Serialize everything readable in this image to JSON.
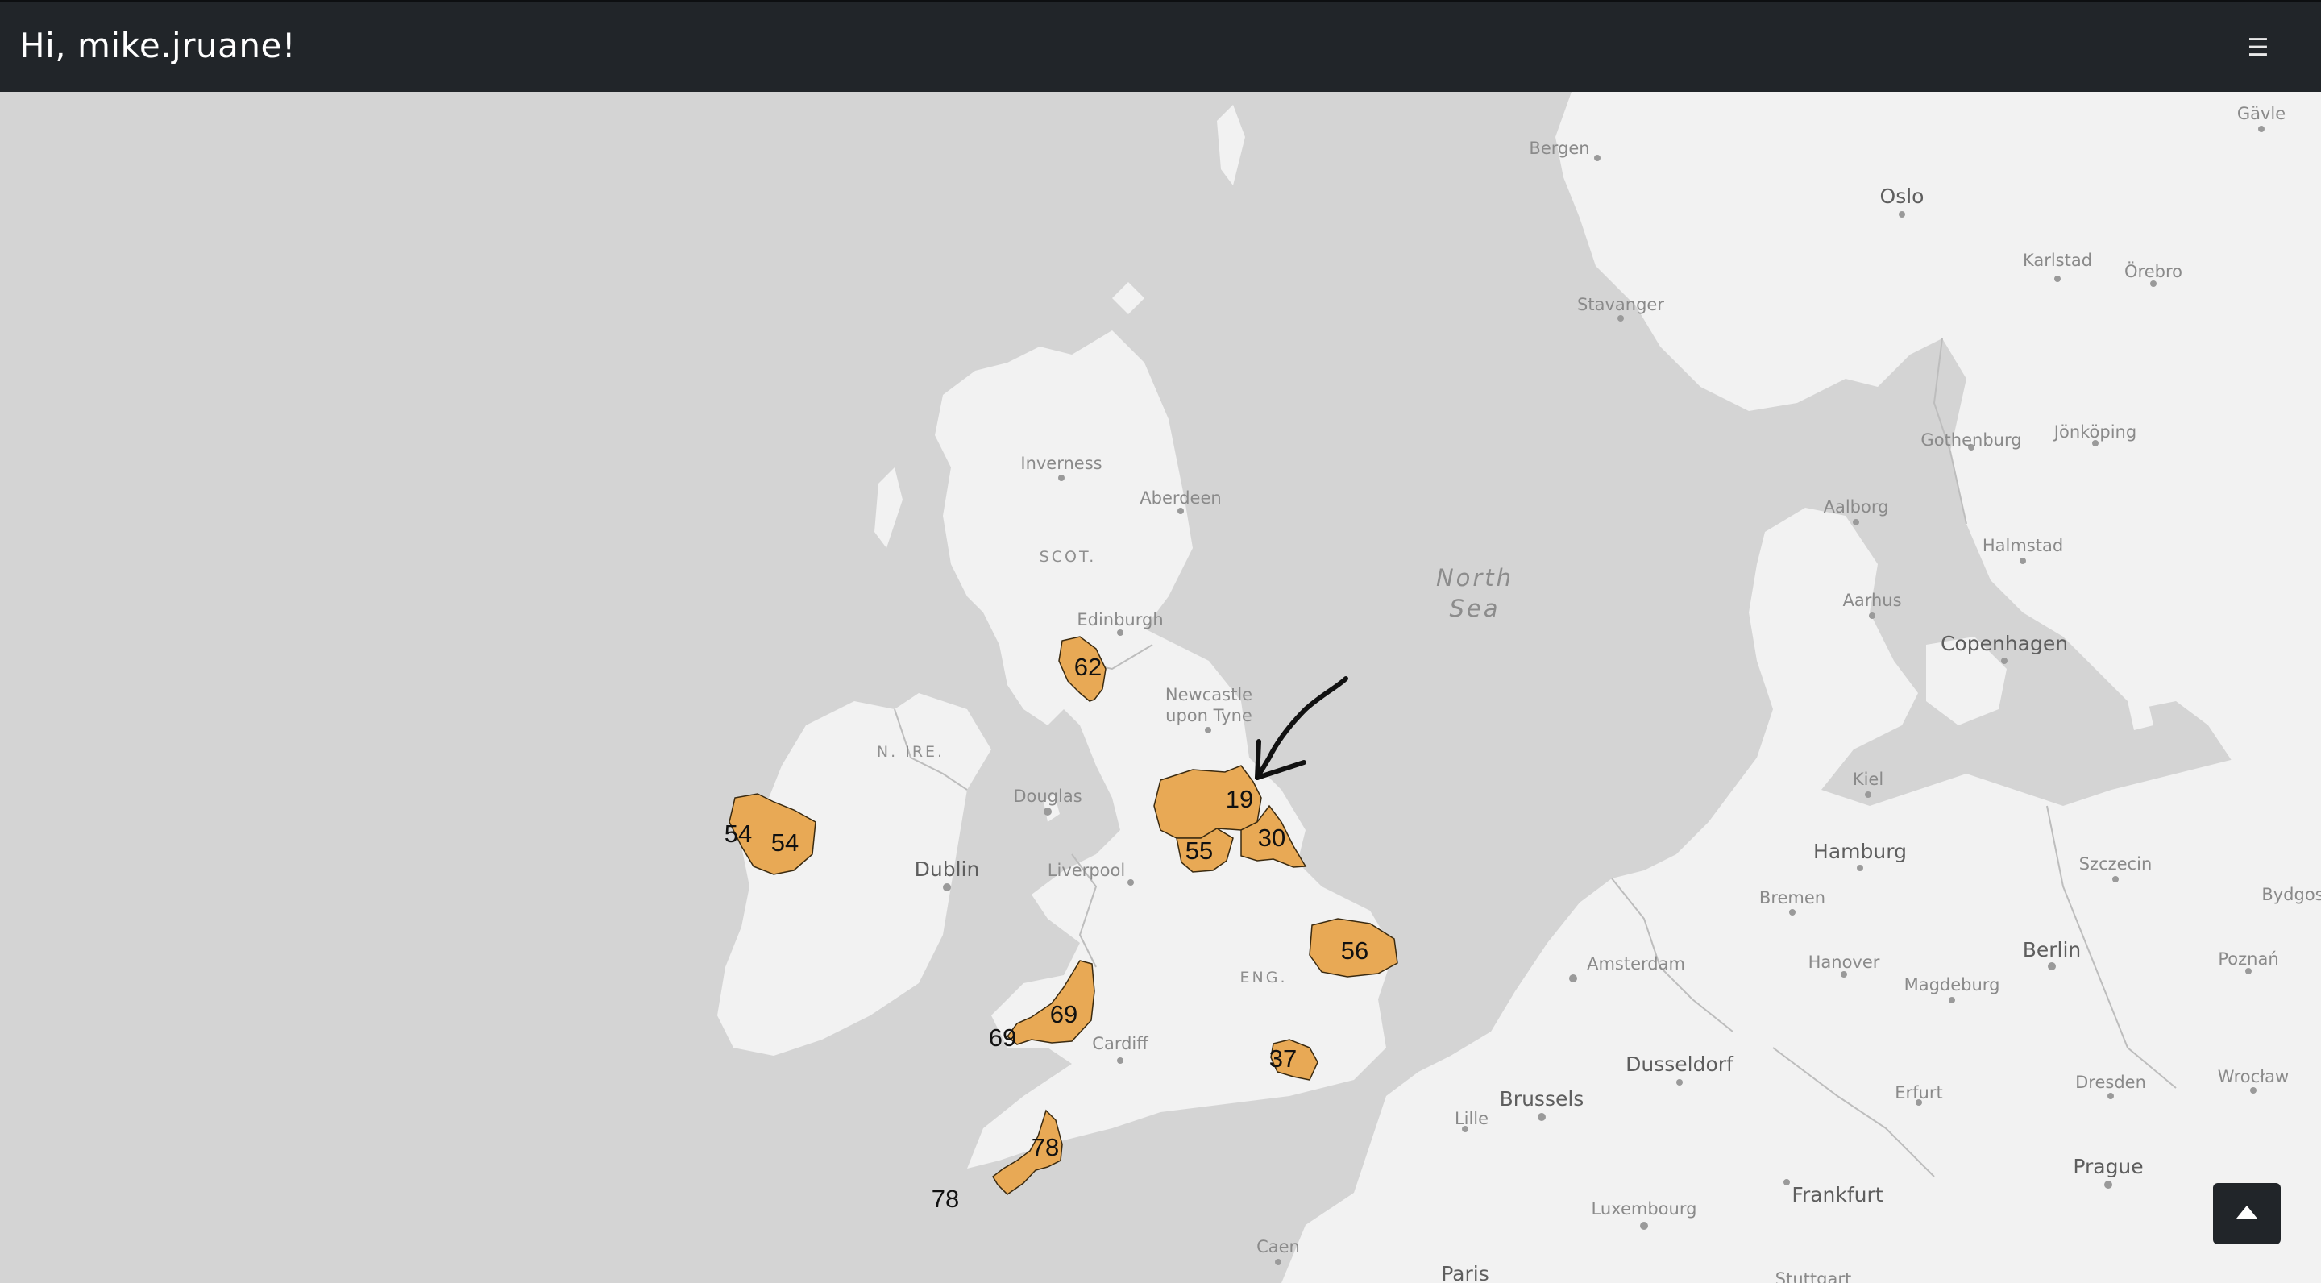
{
  "header": {
    "greeting": "Hi, mike.jruane!",
    "menu_icon": "hamburger-icon",
    "menu_glyph": "☰"
  },
  "map": {
    "colors": {
      "land": "#f2f2f2",
      "water": "#d4d4d4",
      "region_fill": "#e8a955",
      "region_stroke": "#3a2a10",
      "border": "#b4b4b4"
    },
    "sea_labels": [
      "North",
      "Sea"
    ],
    "country_labels": [
      "SCOT.",
      "N. IRE.",
      "ENG."
    ],
    "cities": [
      {
        "id": "bergen",
        "name": "Bergen"
      },
      {
        "id": "oslo",
        "name": "Oslo"
      },
      {
        "id": "gavle",
        "name": "Gävle"
      },
      {
        "id": "karlstad",
        "name": "Karlstad"
      },
      {
        "id": "orebro",
        "name": "Örebro"
      },
      {
        "id": "stavanger",
        "name": "Stavanger"
      },
      {
        "id": "gothenburg",
        "name": "Gothenburg"
      },
      {
        "id": "jonkoping",
        "name": "Jönköping"
      },
      {
        "id": "inverness",
        "name": "Inverness"
      },
      {
        "id": "aberdeen",
        "name": "Aberdeen"
      },
      {
        "id": "aalborg",
        "name": "Aalborg"
      },
      {
        "id": "halmstad",
        "name": "Halmstad"
      },
      {
        "id": "aarhus",
        "name": "Aarhus"
      },
      {
        "id": "edinburgh",
        "name": "Edinburgh"
      },
      {
        "id": "copenhagen",
        "name": "Copenhagen"
      },
      {
        "id": "newcastle-1",
        "name": "Newcastle"
      },
      {
        "id": "newcastle-2",
        "name": "upon Tyne"
      },
      {
        "id": "kiel",
        "name": "Kiel"
      },
      {
        "id": "douglas",
        "name": "Douglas"
      },
      {
        "id": "hamburg",
        "name": "Hamburg"
      },
      {
        "id": "szczecin",
        "name": "Szczecin"
      },
      {
        "id": "dublin",
        "name": "Dublin"
      },
      {
        "id": "liverpool",
        "name": "Liverpool"
      },
      {
        "id": "bremen",
        "name": "Bremen"
      },
      {
        "id": "bydgoszcz",
        "name": "Bydgos"
      },
      {
        "id": "berlin",
        "name": "Berlin"
      },
      {
        "id": "amsterdam",
        "name": "Amsterdam"
      },
      {
        "id": "hanover",
        "name": "Hanover"
      },
      {
        "id": "poznan",
        "name": "Poznań"
      },
      {
        "id": "magdeburg",
        "name": "Magdeburg"
      },
      {
        "id": "cardiff",
        "name": "Cardiff"
      },
      {
        "id": "dusseldorf",
        "name": "Dusseldorf"
      },
      {
        "id": "dresden",
        "name": "Dresden"
      },
      {
        "id": "wroclaw",
        "name": "Wrocław"
      },
      {
        "id": "brussels",
        "name": "Brussels"
      },
      {
        "id": "erfurt",
        "name": "Erfurt"
      },
      {
        "id": "lille",
        "name": "Lille"
      },
      {
        "id": "prague",
        "name": "Prague"
      },
      {
        "id": "frankfurt",
        "name": "Frankfurt"
      },
      {
        "id": "luxembourg",
        "name": "Luxembourg"
      },
      {
        "id": "caen",
        "name": "Caen"
      },
      {
        "id": "paris",
        "name": "Paris"
      },
      {
        "id": "stuttgart",
        "name": "Stuttgart"
      }
    ],
    "regions": [
      {
        "id": "region-62",
        "count": "62"
      },
      {
        "id": "region-19",
        "count": "19"
      },
      {
        "id": "region-30",
        "count": "30"
      },
      {
        "id": "region-55",
        "count": "55"
      },
      {
        "id": "region-54",
        "count": "54"
      },
      {
        "id": "region-54-duplicate",
        "count": "54"
      },
      {
        "id": "region-56",
        "count": "56"
      },
      {
        "id": "region-69",
        "count": "69"
      },
      {
        "id": "region-69-duplicate",
        "count": "69"
      },
      {
        "id": "region-37",
        "count": "37"
      },
      {
        "id": "region-78",
        "count": "78"
      },
      {
        "id": "region-78-duplicate",
        "count": "78"
      }
    ]
  },
  "scroll_top": {
    "icon": "caret-up-icon"
  }
}
